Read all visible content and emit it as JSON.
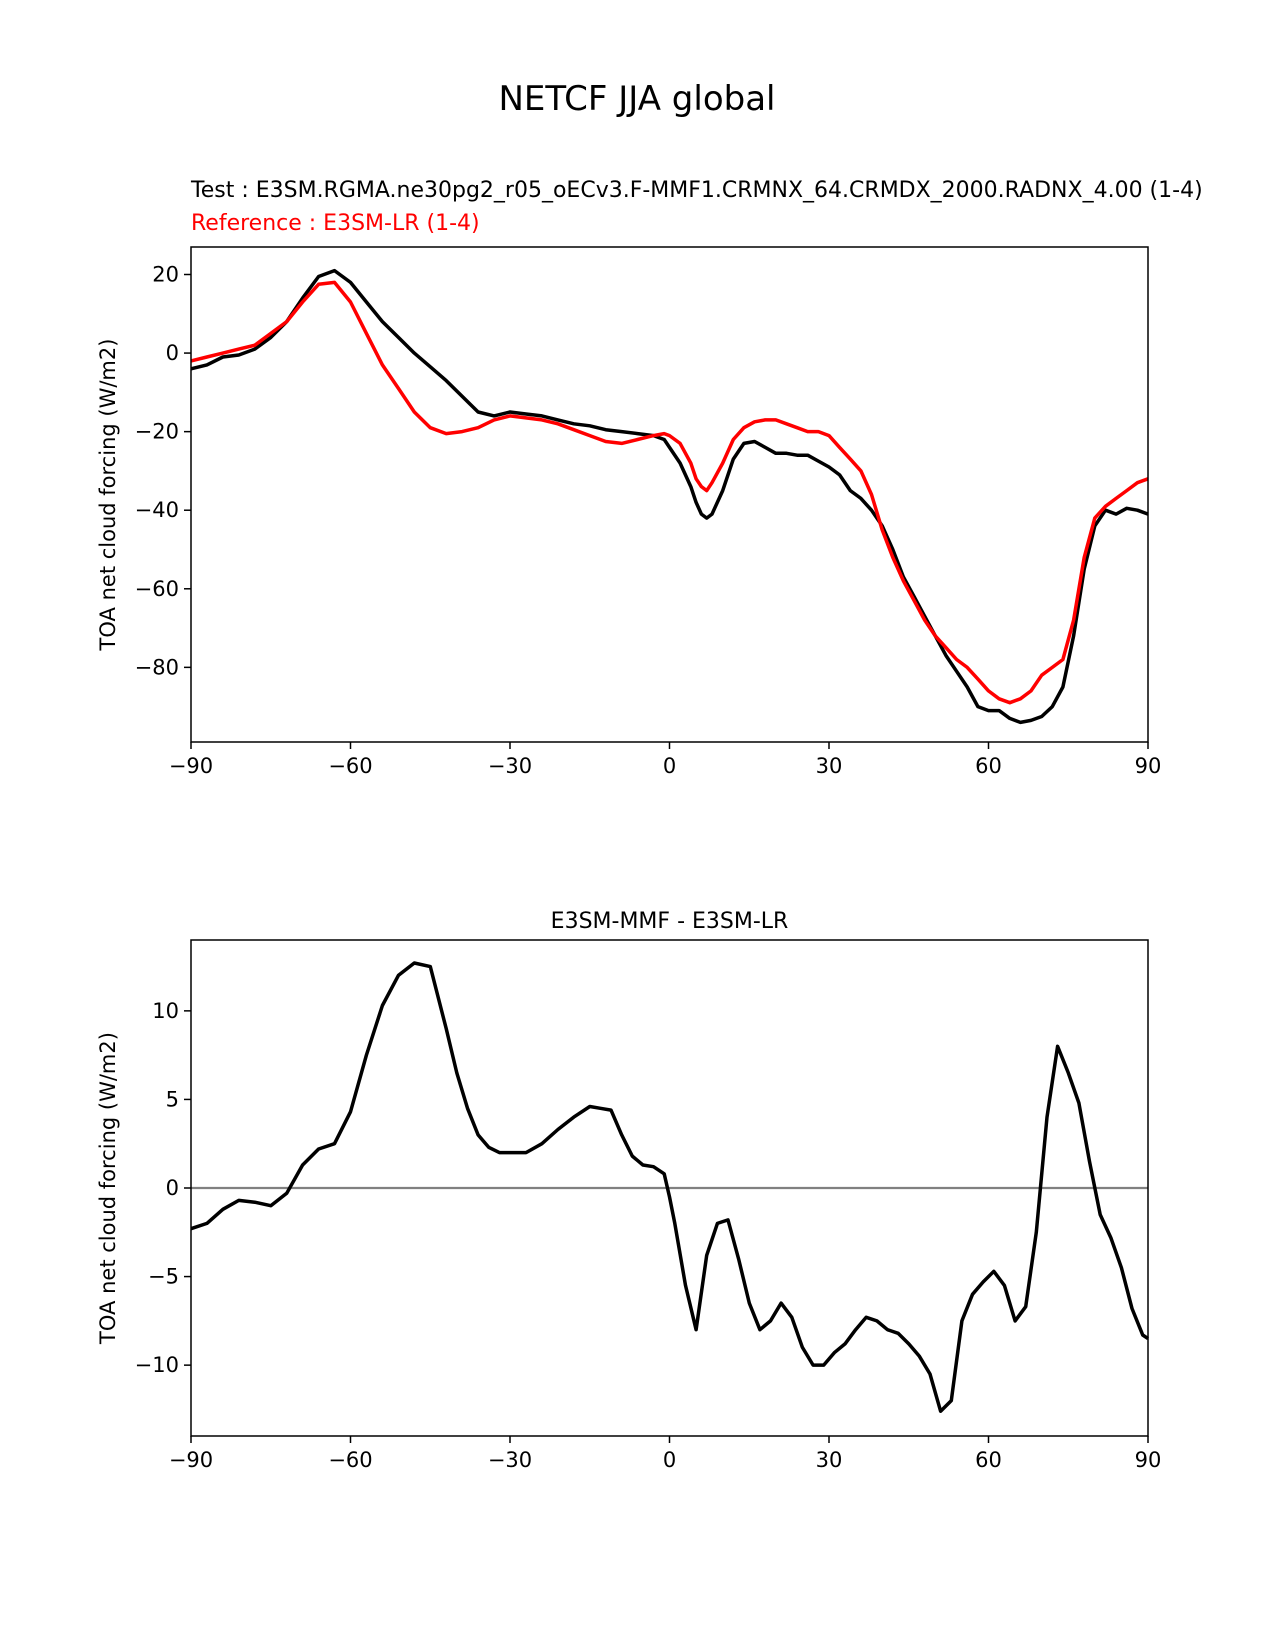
{
  "title": "NETCF JJA global",
  "chart_data": [
    {
      "type": "line",
      "test_label": "Test : E3SM.RGMA.ne30pg2_r05_oECv3.F-MMF1.CRMNX_64.CRMDX_2000.RADNX_4.00 (1-4)",
      "reference_label": "Reference : E3SM-LR (1-4)",
      "xlabel": "",
      "ylabel": "TOA net cloud forcing (W/m2)",
      "xlim": [
        -90,
        90
      ],
      "ylim": [
        -99,
        27
      ],
      "xticks": [
        -90,
        -60,
        -30,
        0,
        30,
        60,
        90
      ],
      "xtick_labels": [
        "−90",
        "−60",
        "−30",
        "0",
        "30",
        "60",
        "90"
      ],
      "yticks": [
        20,
        0,
        -20,
        -40,
        -60,
        -80
      ],
      "ytick_labels": [
        "20",
        "0",
        "−20",
        "−40",
        "−60",
        "−80"
      ],
      "series": [
        {
          "name": "Test",
          "color": "#000000",
          "x": [
            -90,
            -87,
            -84,
            -81,
            -78,
            -75,
            -72,
            -69,
            -66,
            -63,
            -60,
            -57,
            -54,
            -51,
            -48,
            -45,
            -42,
            -39,
            -36,
            -33,
            -30,
            -27,
            -24,
            -21,
            -18,
            -15,
            -12,
            -9,
            -6,
            -3,
            -1,
            0,
            2,
            4,
            5,
            6,
            7,
            8,
            10,
            12,
            14,
            16,
            18,
            20,
            22,
            24,
            26,
            28,
            30,
            32,
            34,
            36,
            38,
            40,
            42,
            44,
            46,
            48,
            50,
            52,
            54,
            56,
            58,
            60,
            62,
            64,
            66,
            68,
            70,
            72,
            74,
            76,
            78,
            80,
            82,
            84,
            86,
            88,
            90
          ],
          "values": [
            -4,
            -3,
            -1,
            -0.5,
            1,
            4,
            8,
            14,
            19.5,
            21,
            18,
            13,
            8,
            4,
            0,
            -3.5,
            -7,
            -11,
            -15,
            -16,
            -15,
            -15.5,
            -16,
            -17,
            -18,
            -18.5,
            -19.5,
            -20,
            -20.5,
            -21,
            -22,
            -24,
            -28,
            -34,
            -38,
            -41,
            -42,
            -41,
            -35,
            -27,
            -23,
            -22.5,
            -24,
            -25.5,
            -25.5,
            -26,
            -26,
            -27.5,
            -29,
            -31,
            -35,
            -37,
            -40,
            -44,
            -50,
            -57,
            -62,
            -67,
            -72,
            -77,
            -81,
            -85,
            -90,
            -91,
            -91,
            -93,
            -94,
            -93.5,
            -92.5,
            -90,
            -85,
            -72,
            -55,
            -44,
            -40,
            -41,
            -39.5,
            -40,
            -41
          ]
        },
        {
          "name": "Reference",
          "color": "#ff0000",
          "x": [
            -90,
            -87,
            -84,
            -81,
            -78,
            -75,
            -72,
            -69,
            -66,
            -63,
            -60,
            -57,
            -54,
            -51,
            -48,
            -45,
            -42,
            -39,
            -36,
            -33,
            -30,
            -27,
            -24,
            -21,
            -18,
            -15,
            -12,
            -9,
            -6,
            -3,
            -1,
            0,
            2,
            4,
            5,
            6,
            7,
            8,
            10,
            12,
            14,
            16,
            18,
            20,
            22,
            24,
            26,
            28,
            30,
            32,
            34,
            36,
            38,
            40,
            42,
            44,
            46,
            48,
            50,
            52,
            54,
            56,
            58,
            60,
            62,
            64,
            66,
            68,
            70,
            72,
            74,
            76,
            78,
            80,
            82,
            84,
            86,
            88,
            90
          ],
          "values": [
            -2,
            -1,
            0,
            1,
            2,
            5,
            8,
            13,
            17.5,
            18,
            13,
            5,
            -3,
            -9,
            -15,
            -19,
            -20.5,
            -20,
            -19,
            -17,
            -16,
            -16.5,
            -17,
            -18,
            -19.5,
            -21,
            -22.5,
            -23,
            -22,
            -21,
            -20.5,
            -21,
            -23,
            -28,
            -32,
            -34,
            -35,
            -33,
            -28,
            -22,
            -19,
            -17.5,
            -17,
            -17,
            -18,
            -19,
            -20,
            -20,
            -21,
            -24,
            -27,
            -30,
            -36,
            -45,
            -52,
            -58,
            -63,
            -68,
            -72,
            -75,
            -78,
            -80,
            -83,
            -86,
            -88,
            -89,
            -88,
            -86,
            -82,
            -80,
            -78,
            -68,
            -52,
            -42,
            -39,
            -37,
            -35,
            -33,
            -32
          ]
        }
      ]
    },
    {
      "type": "line",
      "title": "E3SM-MMF - E3SM-LR",
      "xlabel": "",
      "ylabel": "TOA net cloud forcing (W/m2)",
      "xlim": [
        -90,
        90
      ],
      "ylim": [
        -14,
        14
      ],
      "xticks": [
        -90,
        -60,
        -30,
        0,
        30,
        60,
        90
      ],
      "xtick_labels": [
        "−90",
        "−60",
        "−30",
        "0",
        "30",
        "60",
        "90"
      ],
      "yticks": [
        10,
        5,
        0,
        -5,
        -10
      ],
      "ytick_labels": [
        "10",
        "5",
        "0",
        "−5",
        "−10"
      ],
      "zero_line_color": "#808080",
      "series": [
        {
          "name": "Difference",
          "color": "#000000",
          "x": [
            -90,
            -87,
            -84,
            -81,
            -78,
            -75,
            -72,
            -69,
            -66,
            -63,
            -60,
            -57,
            -54,
            -51,
            -48,
            -45,
            -42,
            -40,
            -38,
            -36,
            -34,
            -32,
            -30,
            -27,
            -24,
            -21,
            -18,
            -15,
            -13,
            -11,
            -9,
            -7,
            -5,
            -3,
            -1,
            0,
            1,
            3,
            5,
            7,
            9,
            11,
            13,
            15,
            17,
            19,
            21,
            23,
            25,
            27,
            29,
            31,
            33,
            35,
            37,
            39,
            41,
            43,
            45,
            47,
            49,
            51,
            53,
            55,
            57,
            59,
            61,
            63,
            65,
            67,
            69,
            71,
            73,
            75,
            77,
            79,
            81,
            83,
            85,
            87,
            89,
            90
          ],
          "values": [
            -2.3,
            -2,
            -1.2,
            -0.7,
            -0.8,
            -1,
            -0.3,
            1.3,
            2.2,
            2.5,
            4.3,
            7.5,
            10.3,
            12,
            12.7,
            12.5,
            9,
            6.5,
            4.5,
            3,
            2.3,
            2,
            2,
            2,
            2.5,
            3.3,
            4,
            4.6,
            4.5,
            4.4,
            3,
            1.8,
            1.3,
            1.2,
            0.8,
            -0.5,
            -2,
            -5.5,
            -8,
            -3.8,
            -2,
            -1.8,
            -4,
            -6.5,
            -8,
            -7.5,
            -6.5,
            -7.3,
            -9,
            -10,
            -10,
            -9.3,
            -8.8,
            -8,
            -7.3,
            -7.5,
            -8,
            -8.2,
            -8.8,
            -9.5,
            -10.5,
            -12.6,
            -12,
            -7.5,
            -6,
            -5.3,
            -4.7,
            -5.5,
            -7.5,
            -6.7,
            -2.5,
            4,
            8,
            6.5,
            4.8,
            1.5,
            -1.5,
            -2.8,
            -4.5,
            -6.8,
            -8.3,
            -8.5
          ]
        }
      ]
    }
  ]
}
